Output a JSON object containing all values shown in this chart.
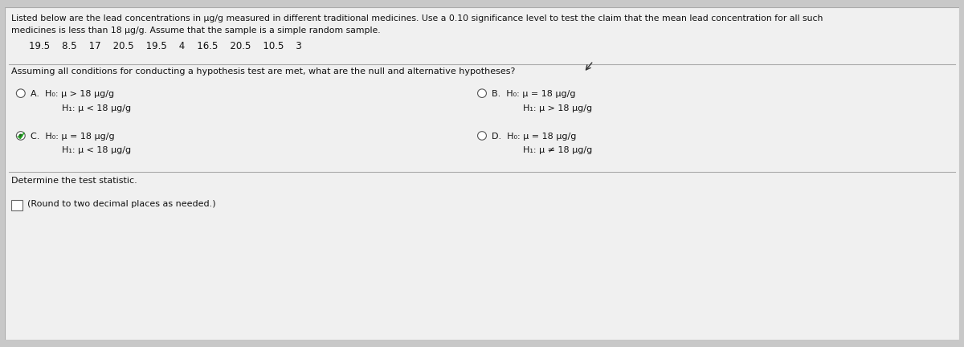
{
  "bg_color": "#c8c8c8",
  "panel_color": "#f0f0f0",
  "title_text1": "Listed below are the lead concentrations in μg/g measured in different traditional medicines. Use a 0.10 significance level to test the claim that the mean lead concentration for all such",
  "title_text2": "medicines is less than 18 μg/g. Assume that the sample is a simple random sample.",
  "data_row": "19.5    8.5    17    20.5    19.5    4    16.5    20.5    10.5    3",
  "question_text": "Assuming all conditions for conducting a hypothesis test are met, what are the null and alternative hypotheses?",
  "option_A_line1": "A.  H₀: μ > 18 μg/g",
  "option_A_line2": "      H₁: μ < 18 μg/g",
  "option_B_line1": "B.  H₀: μ = 18 μg/g",
  "option_B_line2": "      H₁: μ > 18 μg/g",
  "option_C_line1": "C.  H₀: μ = 18 μg/g",
  "option_C_line2": "      H₁: μ < 18 μg/g",
  "option_D_line1": "D.  H₀: μ = 18 μg/g",
  "option_D_line2": "      H₁: μ ≠ 18 μg/g",
  "determine_text": "Determine the test statistic.",
  "round_text": "(Round to two decimal places as needed.)",
  "font_size_title": 7.8,
  "font_size_data": 8.5,
  "font_size_question": 8.0,
  "font_size_option": 8.0,
  "font_size_bottom": 8.0,
  "text_color": "#111111"
}
